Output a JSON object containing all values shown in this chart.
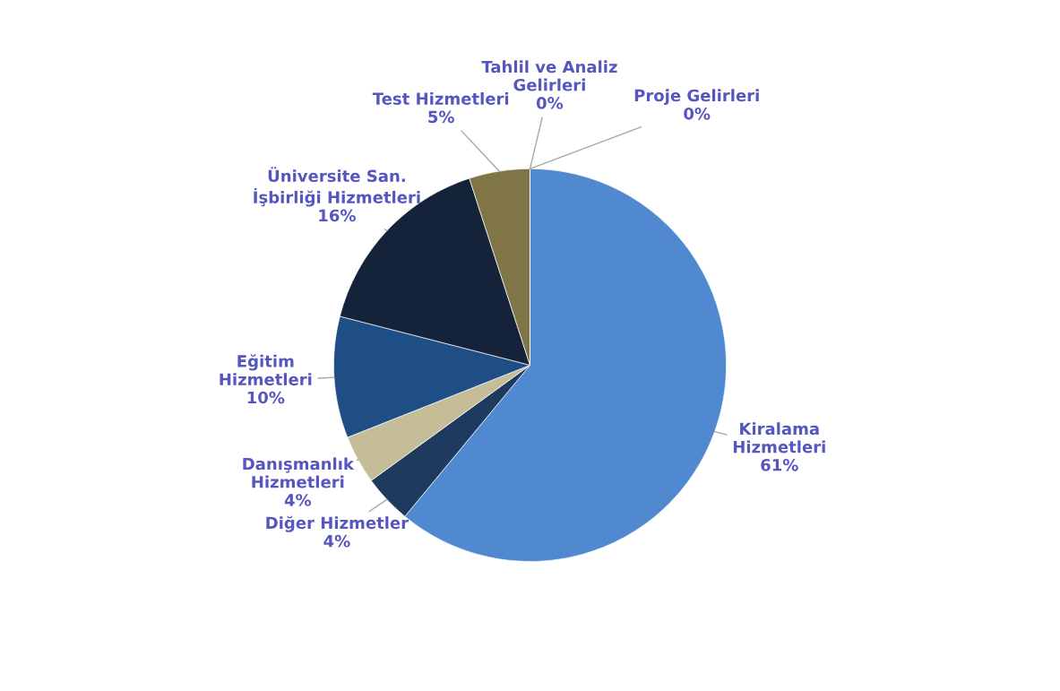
{
  "chart_data": {
    "type": "pie",
    "categories": [
      "Kiralama\nHizmetleri",
      "Diğer Hizmetler",
      "Danışmanlık\nHizmetleri",
      "Eğitim\nHizmetleri",
      "Üniversite San.\nİşbirliği Hizmetleri",
      "Test Hizmetleri",
      "Tahlil ve Analiz\nGelirleri",
      "Proje Gelirleri"
    ],
    "values": [
      61,
      4,
      4,
      10,
      16,
      5,
      0,
      0
    ],
    "colors": [
      "#5089d0",
      "#1f3a5f",
      "#c4bd97",
      "#1f4e87",
      "#14233a",
      "#7f7546",
      "#a5a5a5",
      "#4472c4"
    ],
    "value_labels": [
      "61%",
      "4%",
      "4%",
      "10%",
      "16%",
      "5%",
      "0%",
      "0%"
    ],
    "legend": false
  }
}
